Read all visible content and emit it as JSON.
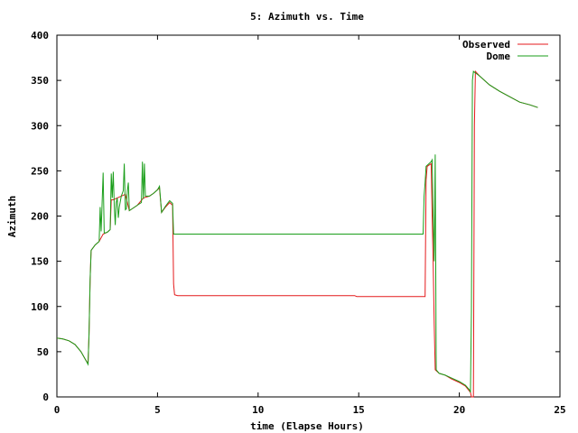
{
  "chart_data": {
    "type": "line",
    "title": "5: Azimuth vs. Time",
    "xlabel": "time (Elapse Hours)",
    "ylabel": "Azimuth",
    "xlim": [
      0,
      25
    ],
    "ylim": [
      0,
      400
    ],
    "xticks": [
      0,
      5,
      10,
      15,
      20,
      25
    ],
    "yticks": [
      0,
      50,
      100,
      150,
      200,
      250,
      300,
      350,
      400
    ],
    "grid": false,
    "legend_position": "top-right",
    "series": [
      {
        "name": "Observed",
        "color": "#e41a1c",
        "points": [
          [
            0.0,
            65
          ],
          [
            0.3,
            64
          ],
          [
            0.6,
            62
          ],
          [
            0.9,
            58
          ],
          [
            1.2,
            50
          ],
          [
            1.4,
            42
          ],
          [
            1.55,
            37
          ],
          [
            1.6,
            70
          ],
          [
            1.65,
            130
          ],
          [
            1.7,
            162
          ],
          [
            1.9,
            168
          ],
          [
            2.1,
            172
          ],
          [
            2.3,
            180
          ],
          [
            2.5,
            182
          ],
          [
            2.65,
            185
          ],
          [
            2.7,
            218
          ],
          [
            2.8,
            218
          ],
          [
            3.0,
            220
          ],
          [
            3.2,
            222
          ],
          [
            3.4,
            224
          ],
          [
            3.6,
            206
          ],
          [
            3.8,
            209
          ],
          [
            4.0,
            212
          ],
          [
            4.3,
            220
          ],
          [
            4.6,
            222
          ],
          [
            4.8,
            225
          ],
          [
            5.1,
            231
          ],
          [
            5.2,
            204
          ],
          [
            5.4,
            210
          ],
          [
            5.6,
            215
          ],
          [
            5.75,
            212
          ],
          [
            5.8,
            125
          ],
          [
            5.85,
            113
          ],
          [
            6.0,
            112
          ],
          [
            10.0,
            112
          ],
          [
            14.8,
            112
          ],
          [
            14.9,
            111
          ],
          [
            16.0,
            111
          ],
          [
            18.3,
            111
          ],
          [
            18.35,
            240
          ],
          [
            18.4,
            255
          ],
          [
            18.6,
            258
          ],
          [
            18.65,
            200
          ],
          [
            18.7,
            150
          ],
          [
            18.75,
            80
          ],
          [
            18.8,
            30
          ],
          [
            19.0,
            26
          ],
          [
            19.3,
            24
          ],
          [
            19.6,
            20
          ],
          [
            20.0,
            16
          ],
          [
            20.3,
            12
          ],
          [
            20.55,
            5
          ],
          [
            20.6,
            0
          ],
          [
            20.7,
            0
          ],
          [
            20.75,
            300
          ],
          [
            20.8,
            360
          ],
          [
            21.0,
            355
          ],
          [
            21.5,
            345
          ],
          [
            22.0,
            338
          ],
          [
            22.5,
            332
          ],
          [
            23.0,
            326
          ],
          [
            23.5,
            323
          ],
          [
            23.9,
            320
          ]
        ]
      },
      {
        "name": "Dome",
        "color": "#1a9e1a",
        "points": [
          [
            0.0,
            65
          ],
          [
            0.3,
            64
          ],
          [
            0.6,
            62
          ],
          [
            0.9,
            58
          ],
          [
            1.2,
            50
          ],
          [
            1.4,
            42
          ],
          [
            1.55,
            36
          ],
          [
            1.6,
            70
          ],
          [
            1.65,
            130
          ],
          [
            1.7,
            162
          ],
          [
            1.9,
            168
          ],
          [
            2.1,
            172
          ],
          [
            2.15,
            210
          ],
          [
            2.2,
            183
          ],
          [
            2.3,
            248
          ],
          [
            2.35,
            181
          ],
          [
            2.5,
            182
          ],
          [
            2.65,
            185
          ],
          [
            2.7,
            247
          ],
          [
            2.75,
            220
          ],
          [
            2.8,
            249
          ],
          [
            2.85,
            212
          ],
          [
            2.9,
            190
          ],
          [
            2.95,
            215
          ],
          [
            3.0,
            220
          ],
          [
            3.05,
            198
          ],
          [
            3.1,
            210
          ],
          [
            3.2,
            222
          ],
          [
            3.3,
            228
          ],
          [
            3.35,
            258
          ],
          [
            3.4,
            207
          ],
          [
            3.45,
            208
          ],
          [
            3.5,
            228
          ],
          [
            3.55,
            237
          ],
          [
            3.6,
            206
          ],
          [
            3.8,
            209
          ],
          [
            4.0,
            212
          ],
          [
            4.2,
            215
          ],
          [
            4.25,
            260
          ],
          [
            4.3,
            219
          ],
          [
            4.35,
            258
          ],
          [
            4.4,
            222
          ],
          [
            4.6,
            222
          ],
          [
            4.8,
            225
          ],
          [
            5.0,
            229
          ],
          [
            5.1,
            233
          ],
          [
            5.2,
            204
          ],
          [
            5.4,
            211
          ],
          [
            5.6,
            217
          ],
          [
            5.75,
            214
          ],
          [
            5.8,
            180
          ],
          [
            6.0,
            180
          ],
          [
            10.0,
            180
          ],
          [
            15.0,
            180
          ],
          [
            18.2,
            180
          ],
          [
            18.25,
            222
          ],
          [
            18.3,
            237
          ],
          [
            18.35,
            255
          ],
          [
            18.6,
            260
          ],
          [
            18.65,
            262
          ],
          [
            18.7,
            200
          ],
          [
            18.75,
            150
          ],
          [
            18.8,
            268
          ],
          [
            18.85,
            30
          ],
          [
            19.0,
            26
          ],
          [
            19.3,
            24
          ],
          [
            19.6,
            21
          ],
          [
            20.0,
            17
          ],
          [
            20.3,
            13
          ],
          [
            20.5,
            8
          ],
          [
            20.55,
            5
          ],
          [
            20.6,
            95
          ],
          [
            20.65,
            350
          ],
          [
            20.7,
            360
          ],
          [
            21.0,
            355
          ],
          [
            21.5,
            345
          ],
          [
            22.0,
            338
          ],
          [
            22.5,
            332
          ],
          [
            23.0,
            326
          ],
          [
            23.5,
            323
          ],
          [
            23.9,
            320
          ]
        ]
      }
    ]
  }
}
